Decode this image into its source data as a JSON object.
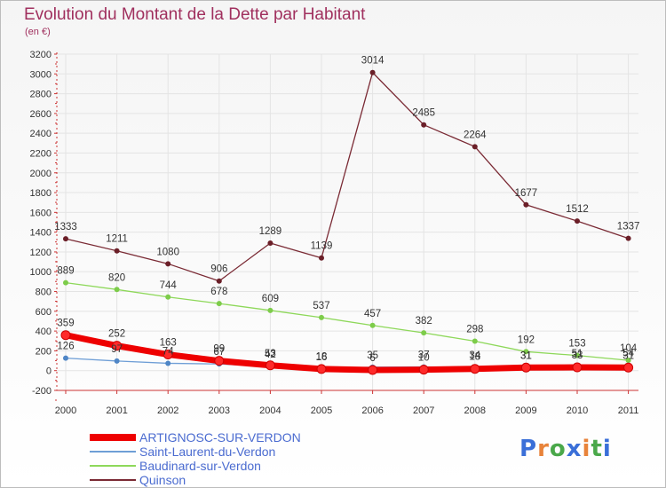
{
  "title": "Evolution du Montant de la Dette par Habitant",
  "subtitle": "(en €)",
  "logo": {
    "text": "Proxiti",
    "colors": [
      "#3a6fd8",
      "#e8833a",
      "#4aa84a",
      "#3a6fd8",
      "#e8833a",
      "#4aa84a",
      "#3a6fd8"
    ]
  },
  "chart_data": {
    "type": "line",
    "title": "Evolution du Montant de la Dette par Habitant",
    "subtitle": "(en €)",
    "xlabel": "",
    "ylabel": "",
    "categories": [
      "2000",
      "2001",
      "2002",
      "2003",
      "2004",
      "2005",
      "2006",
      "2007",
      "2008",
      "2009",
      "2010",
      "2011"
    ],
    "ylim": [
      -200,
      3200
    ],
    "yticks": [
      -200,
      0,
      200,
      400,
      600,
      800,
      1000,
      1200,
      1400,
      1600,
      1800,
      2000,
      2200,
      2400,
      2600,
      2800,
      3000,
      3200
    ],
    "grid": true,
    "legend_position": "bottom-left",
    "series": [
      {
        "name": "Quinson",
        "color": "#7a2a34",
        "marker_color": "#6b1f28",
        "values": [
          1333,
          1211,
          1080,
          906,
          1289,
          1139,
          3014,
          2485,
          2264,
          1677,
          1512,
          1337
        ],
        "labels": [
          "1333",
          "1211",
          "1080",
          "906",
          "1289",
          "1139",
          "3014",
          "2485",
          "2264",
          "1677",
          "1512",
          "1337"
        ]
      },
      {
        "name": "Baudinard-sur-Verdon",
        "color": "#8ed85a",
        "marker_color": "#7dcc4a",
        "values": [
          889,
          820,
          744,
          678,
          609,
          537,
          457,
          382,
          298,
          192,
          153,
          104
        ],
        "labels": [
          "889",
          "820",
          "744",
          "678",
          "609",
          "537",
          "457",
          "382",
          "298",
          "192",
          "153",
          "104"
        ]
      },
      {
        "name": "Saint-Laurent-du-Verdon",
        "color": "#6e9ed6",
        "marker_color": "#4f86c6",
        "values": [
          126,
          97,
          74,
          67,
          42,
          18,
          35,
          37,
          34,
          31,
          51,
          54
        ],
        "labels": [
          "126",
          "97",
          "74",
          "67",
          "42",
          "18",
          "35",
          "37",
          "34",
          "31",
          "51",
          "54"
        ]
      },
      {
        "name": "ARTIGNOSC-SUR-VERDON",
        "color": "#ee0000",
        "marker_color": "#ff2a2a",
        "values": [
          359,
          252,
          163,
          99,
          53,
          16,
          6,
          10,
          18,
          31,
          33,
          31
        ],
        "labels": [
          "359",
          "252",
          "163",
          "99",
          "53",
          "16",
          "6",
          "10",
          "18",
          "31",
          "33",
          "31"
        ]
      }
    ],
    "legend": [
      "ARTIGNOSC-SUR-VERDON",
      "Saint-Laurent-du-Verdon",
      "Baudinard-sur-Verdon",
      "Quinson"
    ]
  }
}
